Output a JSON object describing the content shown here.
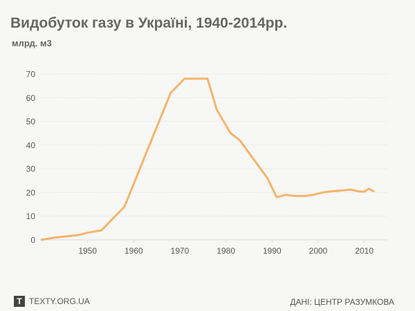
{
  "header": {
    "title": "Видобуток газу в Україні, 1940-2014рр.",
    "subtitle": "млрд. м3"
  },
  "footer": {
    "logo_letter": "T",
    "brand": "TEXTY.ORG.UA",
    "source": "ДАНІ: ЦЕНТР РАЗУМКОВА"
  },
  "colors": {
    "line": "#f5b46a",
    "grid": "#d9d9d9",
    "axis_text": "#555555"
  },
  "chart_data": {
    "type": "line",
    "title": "Видобуток газу в Україні, 1940-2014рр.",
    "ylabel": "млрд. м3",
    "xlabel": "",
    "xlim": [
      1940,
      2015
    ],
    "ylim": [
      0,
      70
    ],
    "x_ticks": [
      1950,
      1960,
      1970,
      1980,
      1990,
      2000,
      2010
    ],
    "y_ticks": [
      0,
      10,
      20,
      30,
      40,
      50,
      60,
      70
    ],
    "grid": "horizontal dotted",
    "series": [
      {
        "x": [
          1940,
          1943,
          1948,
          1950,
          1953,
          1958,
          1963,
          1968,
          1971,
          1973,
          1976,
          1978,
          1981,
          1983,
          1986,
          1989,
          1991,
          1993,
          1995,
          1997,
          1999,
          2001,
          2003,
          2005,
          2007,
          2009,
          2010,
          2011,
          2012
        ],
        "y": [
          0,
          1,
          2,
          3,
          4,
          14,
          38,
          62,
          68,
          68,
          68,
          55,
          45,
          42,
          34,
          26,
          18,
          19,
          18.5,
          18.5,
          19,
          20,
          20.5,
          20.8,
          21.2,
          20.4,
          20.3,
          21.6,
          20.5
        ]
      }
    ]
  }
}
